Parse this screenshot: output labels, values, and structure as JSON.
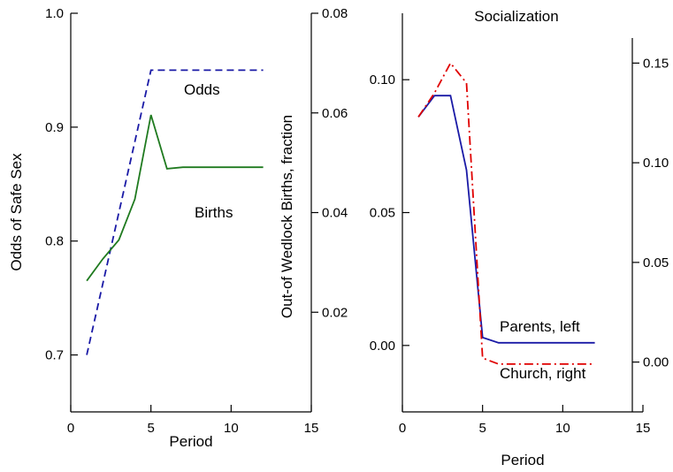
{
  "chart_data": [
    {
      "type": "line",
      "title": "",
      "xlabel": "Period",
      "ylabel_left": "Odds of Safe Sex",
      "ylabel_right": "Out-of Wedlock Births, fraction",
      "xlim": [
        0,
        15
      ],
      "ylim_left": [
        0.65,
        1.0
      ],
      "ylim_right": [
        0.0,
        0.08
      ],
      "x_ticks": [
        "0",
        "5",
        "10",
        "15"
      ],
      "y_left_ticks": [
        "0.7",
        "0.8",
        "0.9",
        "1.0"
      ],
      "y_right_ticks": [
        "0.02",
        "0.04",
        "0.06",
        "0.08"
      ],
      "grid": false,
      "series": [
        {
          "name": "Odds",
          "axis": "left",
          "color": "#1a1aa6",
          "style": "dashed",
          "x": [
            1,
            5,
            6,
            7,
            8,
            9,
            10,
            11,
            12
          ],
          "y": [
            0.7,
            0.95,
            0.95,
            0.95,
            0.95,
            0.95,
            0.95,
            0.95,
            0.95
          ]
        },
        {
          "name": "Births",
          "axis": "right",
          "color": "#1f7a1f",
          "style": "solid",
          "x": [
            1,
            2,
            3,
            4,
            5,
            6,
            7,
            8,
            9,
            10,
            11,
            12
          ],
          "y": [
            0.0263,
            0.0307,
            0.0345,
            0.0427,
            0.0596,
            0.0488,
            0.0491,
            0.0491,
            0.0491,
            0.0491,
            0.0491,
            0.0491
          ]
        }
      ],
      "annotations": [
        "Odds",
        "Births"
      ]
    },
    {
      "type": "line",
      "title": "Socialization",
      "xlabel": "Period",
      "ylabel_left": "",
      "ylabel_right": "",
      "xlim": [
        0,
        15
      ],
      "ylim_left": [
        -0.025,
        0.125
      ],
      "ylim_right": [
        -0.025,
        0.175
      ],
      "x_ticks": [
        "0",
        "5",
        "10",
        "15"
      ],
      "y_left_ticks": [
        "0.00",
        "0.05",
        "0.10"
      ],
      "y_right_ticks": [
        "0.00",
        "0.05",
        "0.10",
        "0.15"
      ],
      "grid": false,
      "series": [
        {
          "name": "Parents, left",
          "axis": "left",
          "color": "#1a1aa6",
          "style": "solid",
          "x": [
            1,
            2,
            3,
            4,
            5,
            6,
            7,
            8,
            9,
            10,
            11,
            12
          ],
          "y": [
            0.086,
            0.094,
            0.094,
            0.066,
            0.003,
            0.001,
            0.001,
            0.001,
            0.001,
            0.001,
            0.001,
            0.001
          ]
        },
        {
          "name": "Church, right",
          "axis": "right",
          "color": "#e00000",
          "style": "dashdot",
          "x": [
            1,
            2,
            3,
            4,
            5,
            6,
            7,
            8,
            9,
            10,
            11,
            12
          ],
          "y": [
            0.123,
            0.135,
            0.15,
            0.14,
            0.002,
            -0.001,
            -0.001,
            -0.001,
            -0.001,
            -0.001,
            -0.001,
            -0.001
          ]
        }
      ],
      "annotations": [
        "Parents, left",
        "Church, right"
      ]
    }
  ]
}
